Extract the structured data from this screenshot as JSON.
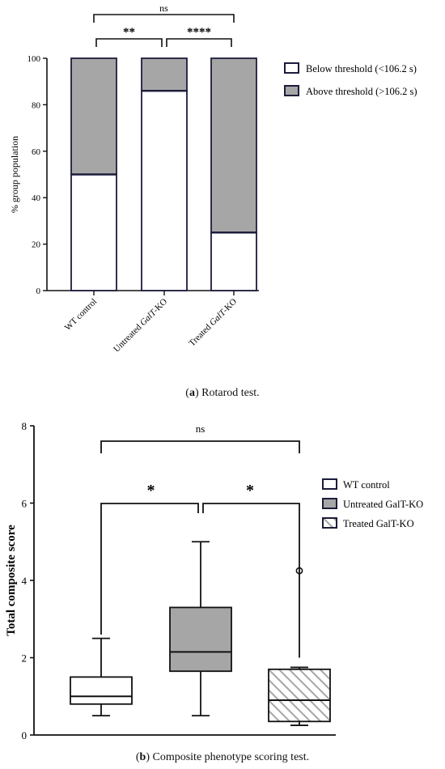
{
  "captions": {
    "a_letter": "a",
    "a_text": " Rotarod test.",
    "b_letter": "b",
    "b_text": " Composite phenotype scoring test."
  },
  "chart_data": [
    {
      "type": "bar",
      "stacked": true,
      "ylabel": "% group population",
      "ylim": [
        0,
        100
      ],
      "yticks": [
        0,
        20,
        40,
        60,
        80,
        100
      ],
      "categories": [
        "WT control",
        "Untreated GalT-KO",
        "Treated GalT-KO"
      ],
      "category_parts": [
        [
          {
            "t": "WT control",
            "i": false
          }
        ],
        [
          {
            "t": "Untreated ",
            "i": false
          },
          {
            "t": "GalT",
            "i": true
          },
          {
            "t": "-KO",
            "i": false
          }
        ],
        [
          {
            "t": "Treated ",
            "i": false
          },
          {
            "t": "GalT",
            "i": true
          },
          {
            "t": "-KO",
            "i": false
          }
        ]
      ],
      "series": [
        {
          "name": "Below threshold (<106.2 s)",
          "values": [
            50,
            86,
            25
          ],
          "color": "#ffffff"
        },
        {
          "name": "Above threshold (>106.2 s)",
          "values": [
            50,
            14,
            75
          ],
          "color": "#a6a6a6"
        }
      ],
      "edge_color": "#1c1c3c",
      "significance": [
        {
          "from": 0,
          "to": 1,
          "label": "**"
        },
        {
          "from": 1,
          "to": 2,
          "label": "****"
        },
        {
          "from": 0,
          "to": 2,
          "label": "ns"
        }
      ],
      "legend_position": "right"
    },
    {
      "type": "box",
      "ylabel": "Total composite score",
      "ylim": [
        0,
        8
      ],
      "yticks": [
        0,
        2,
        4,
        6,
        8
      ],
      "categories": [
        "WT control",
        "Untreated GalT-KO",
        "Treated GalT-KO"
      ],
      "series": [
        {
          "name": "WT control",
          "min": 0.5,
          "q1": 0.8,
          "median": 1.0,
          "q3": 1.5,
          "max": 2.5,
          "outliers": [],
          "fill": "#ffffff",
          "pattern": "none"
        },
        {
          "name": "Untreated GalT-KO",
          "min": 0.5,
          "q1": 1.65,
          "median": 2.15,
          "q3": 3.3,
          "max": 5.0,
          "outliers": [],
          "fill": "#a6a6a6",
          "pattern": "none"
        },
        {
          "name": "Treated GalT-KO",
          "min": 0.25,
          "q1": 0.35,
          "median": 0.9,
          "q3": 1.7,
          "max": 1.75,
          "outliers": [
            4.25
          ],
          "fill": "#ffffff",
          "pattern": "hatch"
        }
      ],
      "significance": [
        {
          "from": 0,
          "to": 1,
          "label": "*"
        },
        {
          "from": 1,
          "to": 2,
          "label": "*"
        },
        {
          "from": 0,
          "to": 2,
          "label": "ns"
        }
      ],
      "legend_position": "right"
    }
  ]
}
